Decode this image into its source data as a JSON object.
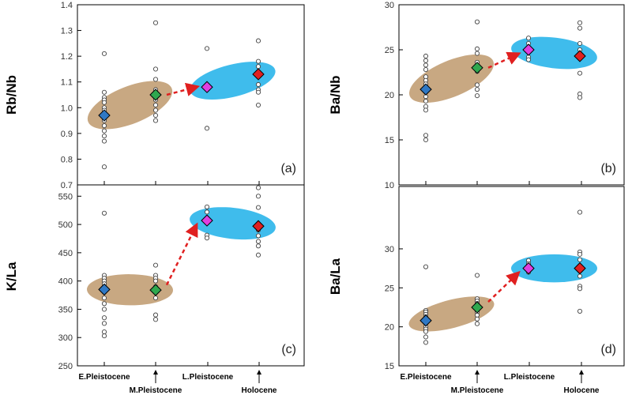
{
  "categories": [
    "E.Pleistocene",
    "M.Pleistocene",
    "L.Pleistocene",
    "Holocene"
  ],
  "colors": {
    "early_ellipse": "#c8a882",
    "late_ellipse": "#3fbcec",
    "E.Pleistocene": "#2f78c4",
    "M.Pleistocene": "#2fa84f",
    "L.Pleistocene": "#e03ee0",
    "Holocene": "#e02020",
    "arrow": "#e02020"
  },
  "chart_data": [
    {
      "type": "scatter",
      "panel": "(a)",
      "ylabel": "Rb/Nb",
      "ylim": [
        0.7,
        1.4
      ],
      "yticks": [
        "0.7",
        "0.8",
        "0.9",
        "1.0",
        "1.1",
        "1.2",
        "1.3",
        "1.4"
      ],
      "yreverse": false,
      "samples": [
        [
          1.21,
          1.06,
          1.04,
          1.03,
          1.02,
          1.0,
          0.99,
          0.97,
          0.95,
          0.93,
          0.91,
          0.89,
          0.87,
          0.77
        ],
        [
          1.33,
          1.15,
          1.11,
          1.07,
          1.03,
          1.01,
          0.99,
          0.97,
          0.95
        ],
        [
          1.23,
          1.09,
          1.07,
          0.92
        ],
        [
          1.26,
          1.18,
          1.16,
          1.09,
          1.07,
          1.06,
          1.01
        ]
      ],
      "means": [
        0.97,
        1.05,
        1.08,
        1.13
      ],
      "ellipses": [
        {
          "group": "early",
          "from": [
            0,
            0.97
          ],
          "to": [
            1,
            1.05
          ],
          "height": 0.145
        },
        {
          "group": "late",
          "from": [
            2,
            1.08
          ],
          "to": [
            3,
            1.13
          ],
          "height": 0.125
        }
      ],
      "arrow": {
        "from": [
          1,
          1.05
        ],
        "to": [
          2,
          1.08
        ]
      }
    },
    {
      "type": "scatter",
      "panel": "(b)",
      "ylabel": "Ba/Nb",
      "ylim": [
        10,
        30
      ],
      "yticks": [
        "10",
        "15",
        "20",
        "25",
        "30"
      ],
      "yreverse": false,
      "samples": [
        [
          24.3,
          23.8,
          23.3,
          22.8,
          22.0,
          21.6,
          21.2,
          20.8,
          20.3,
          19.8,
          19.3,
          18.7,
          18.3,
          15.5,
          15.0
        ],
        [
          28.1,
          25.1,
          24.6,
          23.6,
          22.6,
          21.1,
          20.6,
          19.9
        ],
        [
          26.3,
          25.7,
          24.2,
          23.9
        ],
        [
          28.0,
          27.4,
          25.7,
          25.0,
          24.5,
          24.1,
          22.4,
          20.1,
          19.7
        ]
      ],
      "means": [
        20.6,
        23.0,
        25.0,
        24.3
      ],
      "ellipses": [
        {
          "group": "early",
          "from": [
            0,
            20.6
          ],
          "to": [
            1,
            23.0
          ],
          "height": 4.0
        },
        {
          "group": "late",
          "from": [
            2,
            25.0
          ],
          "to": [
            3,
            24.3
          ],
          "height": 3.4
        }
      ],
      "arrow": {
        "from": [
          1,
          23.0
        ],
        "to": [
          2,
          24.5
        ]
      }
    },
    {
      "type": "scatter",
      "panel": "(c)",
      "ylabel": "K/La",
      "ylim": [
        250,
        570
      ],
      "yticks": [
        "250",
        "300",
        "350",
        "400",
        "450",
        "500",
        "550"
      ],
      "yreverse": false,
      "samples": [
        [
          520,
          410,
          405,
          400,
          395,
          390,
          385,
          380,
          370,
          360,
          350,
          335,
          325,
          310,
          303
        ],
        [
          428,
          410,
          405,
          400,
          390,
          380,
          370,
          340,
          332
        ],
        [
          531,
          522,
          481,
          476
        ],
        [
          565,
          550,
          530,
          500,
          490,
          480,
          470,
          462,
          446
        ]
      ],
      "means": [
        385,
        384,
        507,
        497
      ],
      "ellipses": [
        {
          "group": "early",
          "from": [
            0,
            385
          ],
          "to": [
            1,
            384
          ],
          "height": 55
        },
        {
          "group": "late",
          "from": [
            2,
            507
          ],
          "to": [
            3,
            497
          ],
          "height": 55
        }
      ],
      "arrow": {
        "from": [
          1,
          393
        ],
        "to": [
          2,
          497
        ]
      }
    },
    {
      "type": "scatter",
      "panel": "(d)",
      "ylabel": "Ba/La",
      "ylim": [
        15,
        38
      ],
      "yticks": [
        "15",
        "20",
        "25",
        "30"
      ],
      "yreverse": false,
      "samples": [
        [
          27.7,
          22.1,
          21.9,
          21.6,
          21.3,
          21.0,
          20.7,
          20.4,
          20.0,
          19.7,
          19.4,
          18.7,
          18.0
        ],
        [
          26.6,
          23.6,
          23.3,
          23.0,
          22.7,
          22.3,
          21.9,
          21.5,
          21.0,
          20.4
        ],
        [
          28.5,
          28.1,
          27.5,
          27.0
        ],
        [
          34.7,
          29.6,
          29.3,
          28.6,
          27.6,
          26.5,
          25.2,
          24.9,
          22.0
        ]
      ],
      "means": [
        20.8,
        22.5,
        27.5,
        27.5
      ],
      "ellipses": [
        {
          "group": "early",
          "from": [
            0,
            20.8
          ],
          "to": [
            1,
            22.5
          ],
          "height": 3.6
        },
        {
          "group": "late",
          "from": [
            2,
            27.5
          ],
          "to": [
            3,
            27.5
          ],
          "height": 3.6
        }
      ],
      "arrow": {
        "from": [
          1,
          23.2
        ],
        "to": [
          2,
          26.8
        ]
      }
    }
  ]
}
